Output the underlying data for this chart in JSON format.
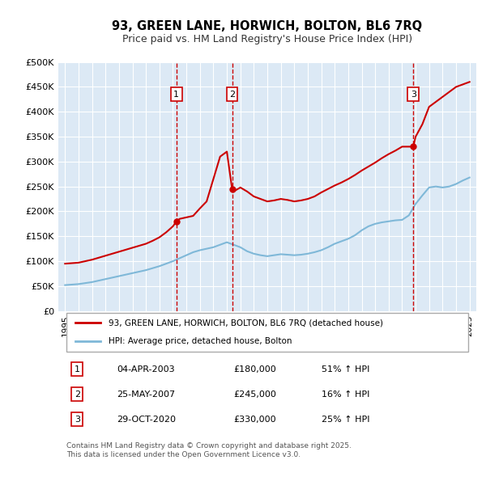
{
  "title": "93, GREEN LANE, HORWICH, BOLTON, BL6 7RQ",
  "subtitle": "Price paid vs. HM Land Registry's House Price Index (HPI)",
  "xlabel": "",
  "ylabel": "",
  "ylim": [
    0,
    500000
  ],
  "xlim": [
    1994.5,
    2025.5
  ],
  "yticks": [
    0,
    50000,
    100000,
    150000,
    200000,
    250000,
    300000,
    350000,
    400000,
    450000,
    500000
  ],
  "ytick_labels": [
    "£0",
    "£50K",
    "£100K",
    "£150K",
    "£200K",
    "£250K",
    "£300K",
    "£350K",
    "£400K",
    "£450K",
    "£500K"
  ],
  "xticks": [
    1995,
    1996,
    1997,
    1998,
    1999,
    2000,
    2001,
    2002,
    2003,
    2004,
    2005,
    2006,
    2007,
    2008,
    2009,
    2010,
    2011,
    2012,
    2013,
    2014,
    2015,
    2016,
    2017,
    2018,
    2019,
    2020,
    2021,
    2022,
    2023,
    2024,
    2025
  ],
  "bg_color": "#dce9f5",
  "plot_bg": "#dce9f5",
  "grid_color": "#ffffff",
  "red_color": "#cc0000",
  "blue_color": "#7fb8d8",
  "sale_line_color": "#cc0000",
  "sale_dates": [
    2003.26,
    2007.39,
    2020.83
  ],
  "sale_prices": [
    180000,
    245000,
    330000
  ],
  "sale_labels": [
    "1",
    "2",
    "3"
  ],
  "legend_label_red": "93, GREEN LANE, HORWICH, BOLTON, BL6 7RQ (detached house)",
  "legend_label_blue": "HPI: Average price, detached house, Bolton",
  "table_rows": [
    [
      "1",
      "04-APR-2003",
      "£180,000",
      "51% ↑ HPI"
    ],
    [
      "2",
      "25-MAY-2007",
      "£245,000",
      "16% ↑ HPI"
    ],
    [
      "3",
      "29-OCT-2020",
      "£330,000",
      "25% ↑ HPI"
    ]
  ],
  "footer": "Contains HM Land Registry data © Crown copyright and database right 2025.\nThis data is licensed under the Open Government Licence v3.0.",
  "hpi_x": [
    1995,
    1995.5,
    1996,
    1996.5,
    1997,
    1997.5,
    1998,
    1998.5,
    1999,
    1999.5,
    2000,
    2000.5,
    2001,
    2001.5,
    2002,
    2002.5,
    2003,
    2003.5,
    2004,
    2004.5,
    2005,
    2005.5,
    2006,
    2006.5,
    2007,
    2007.5,
    2008,
    2008.5,
    2009,
    2009.5,
    2010,
    2010.5,
    2011,
    2011.5,
    2012,
    2012.5,
    2013,
    2013.5,
    2014,
    2014.5,
    2015,
    2015.5,
    2016,
    2016.5,
    2017,
    2017.5,
    2018,
    2018.5,
    2019,
    2019.5,
    2020,
    2020.5,
    2021,
    2021.5,
    2022,
    2022.5,
    2023,
    2023.5,
    2024,
    2024.5,
    2025
  ],
  "hpi_y": [
    52000,
    53000,
    54000,
    56000,
    58000,
    61000,
    64000,
    67000,
    70000,
    73000,
    76000,
    79000,
    82000,
    86000,
    90000,
    95000,
    100000,
    106000,
    112000,
    118000,
    122000,
    125000,
    128000,
    133000,
    138000,
    133000,
    128000,
    120000,
    115000,
    112000,
    110000,
    112000,
    114000,
    113000,
    112000,
    113000,
    115000,
    118000,
    122000,
    128000,
    135000,
    140000,
    145000,
    152000,
    162000,
    170000,
    175000,
    178000,
    180000,
    182000,
    183000,
    192000,
    215000,
    232000,
    248000,
    250000,
    248000,
    250000,
    255000,
    262000,
    268000
  ],
  "price_x": [
    1995,
    1995.5,
    1996,
    1996.5,
    1997,
    1997.5,
    1998,
    1998.5,
    1999,
    1999.5,
    2000,
    2000.5,
    2001,
    2001.5,
    2002,
    2002.5,
    2003,
    2003.26,
    2003.5,
    2004,
    2004.5,
    2005,
    2005.5,
    2006,
    2006.5,
    2007,
    2007.39,
    2007.5,
    2008,
    2008.5,
    2009,
    2009.5,
    2010,
    2010.5,
    2011,
    2011.5,
    2012,
    2012.5,
    2013,
    2013.5,
    2014,
    2014.5,
    2015,
    2015.5,
    2016,
    2016.5,
    2017,
    2017.5,
    2018,
    2018.5,
    2019,
    2019.5,
    2020,
    2020.83,
    2021,
    2021.5,
    2022,
    2022.5,
    2023,
    2023.5,
    2024,
    2024.5,
    2025
  ],
  "price_y": [
    95000,
    96000,
    97000,
    100000,
    103000,
    107000,
    111000,
    115000,
    119000,
    123000,
    127000,
    131000,
    135000,
    141000,
    148000,
    158000,
    170000,
    180000,
    185000,
    188000,
    191000,
    206000,
    220000,
    265000,
    310000,
    320000,
    245000,
    240000,
    248000,
    240000,
    230000,
    225000,
    220000,
    222000,
    225000,
    223000,
    220000,
    222000,
    225000,
    230000,
    238000,
    245000,
    252000,
    258000,
    265000,
    273000,
    282000,
    290000,
    298000,
    307000,
    315000,
    322000,
    330000,
    330000,
    350000,
    375000,
    410000,
    420000,
    430000,
    440000,
    450000,
    455000,
    460000
  ]
}
